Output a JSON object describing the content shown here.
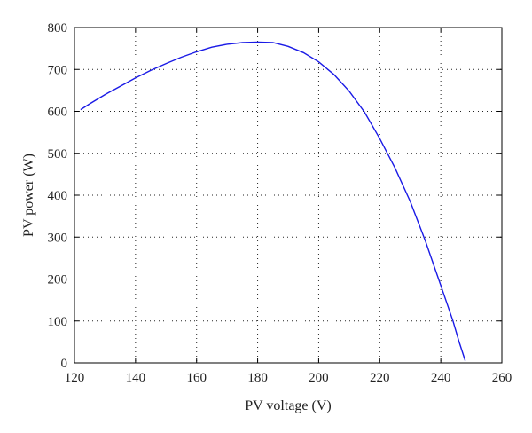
{
  "chart_data": {
    "type": "line",
    "title": "",
    "xlabel": "PV voltage (V)",
    "ylabel": "PV power (W)",
    "xlim": [
      120,
      260
    ],
    "ylim": [
      0,
      800
    ],
    "x_ticks": [
      120,
      140,
      160,
      180,
      200,
      220,
      240,
      260
    ],
    "y_ticks": [
      0,
      100,
      200,
      300,
      400,
      500,
      600,
      700,
      800
    ],
    "grid": "dotted",
    "legend": "none",
    "line_color": "#1a1ae6",
    "series": [
      {
        "x": [
          122,
          125,
          130,
          135,
          140,
          145,
          150,
          155,
          160,
          165,
          170,
          175,
          180,
          185,
          190,
          195,
          200,
          205,
          210,
          215,
          220,
          225,
          230,
          235,
          240,
          244,
          246,
          248
        ],
        "values": [
          604,
          618,
          640,
          660,
          680,
          698,
          714,
          729,
          742,
          753,
          760,
          764,
          765,
          764,
          755,
          740,
          718,
          688,
          648,
          598,
          535,
          465,
          385,
          290,
          185,
          100,
          50,
          5
        ]
      }
    ]
  }
}
